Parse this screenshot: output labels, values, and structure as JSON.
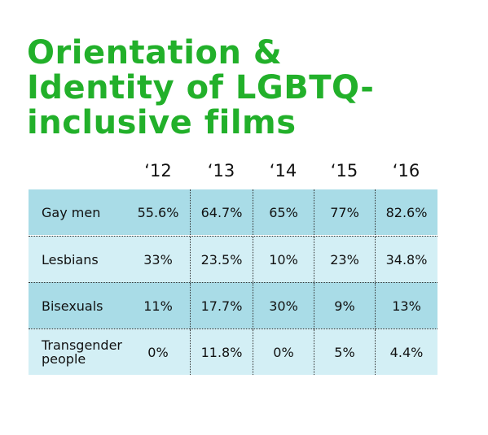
{
  "title": [
    "Orientation &",
    "Identity of LGBTQ-",
    "inclusive films"
  ],
  "table": {
    "columns": [
      "‘12",
      "‘13",
      "‘14",
      "‘15",
      "‘16"
    ],
    "rows": [
      [
        "Gay men",
        "55.6%",
        "64.7%",
        "65%",
        "77%",
        "82.6%"
      ],
      [
        "Lesbians",
        "33%",
        "23.5%",
        "10%",
        "23%",
        "34.8%"
      ],
      [
        "Bisexuals",
        "11%",
        "17.7%",
        "30%",
        "9%",
        "13%"
      ],
      [
        "Transgender people",
        "0%",
        "11.8%",
        "0%",
        "5%",
        "4.4%"
      ]
    ]
  }
}
